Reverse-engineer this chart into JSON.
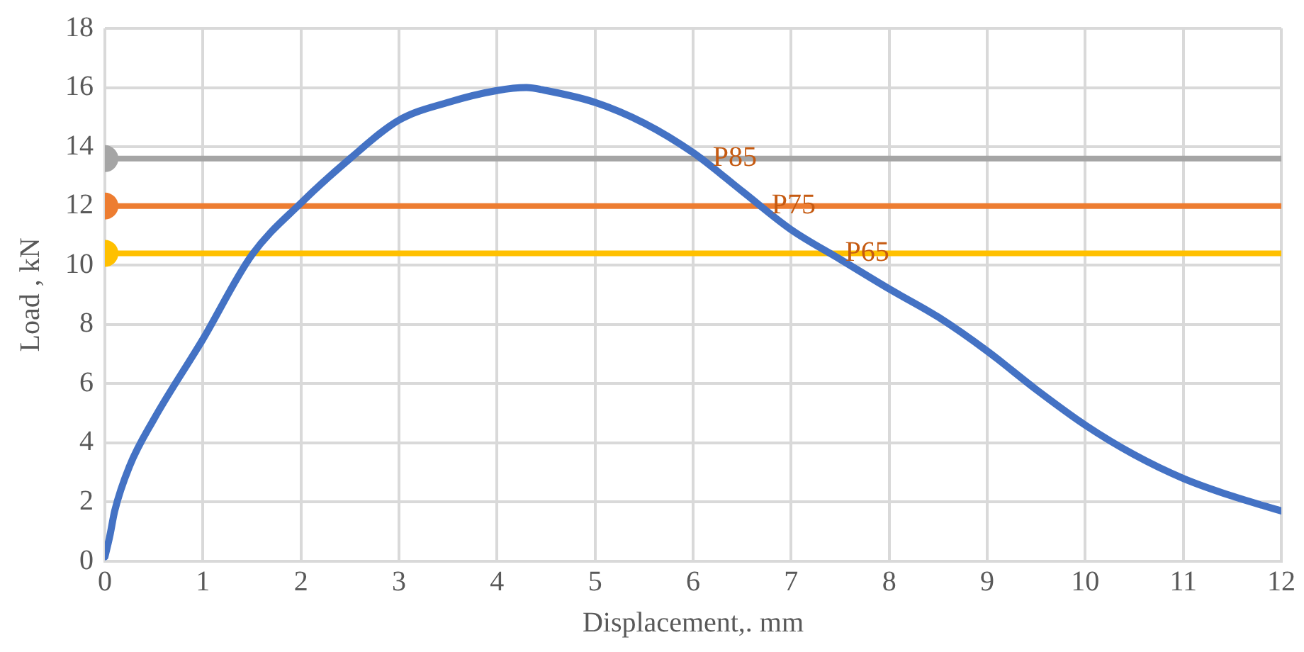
{
  "chart_data": {
    "type": "line",
    "xlabel": "Displacement,. mm",
    "ylabel": "Load , kN",
    "xlim": [
      0,
      12
    ],
    "xticks": [
      0,
      1,
      2,
      3,
      4,
      5,
      6,
      7,
      8,
      9,
      10,
      11,
      12
    ],
    "ylim": [
      0,
      18
    ],
    "yticks": [
      0,
      2,
      4,
      6,
      8,
      10,
      12,
      14,
      16,
      18
    ],
    "grid": true,
    "legend": false,
    "marker": "none",
    "line_style": "solid",
    "series": [
      {
        "color": "#4472c4",
        "x": [
          0,
          0.05,
          0.1,
          0.25,
          0.5,
          1,
          1.5,
          2,
          2.5,
          3,
          3.5,
          4,
          4.3,
          4.5,
          5,
          5.5,
          6,
          6.5,
          7,
          7.5,
          8,
          8.5,
          9,
          9.5,
          10,
          10.5,
          11,
          11.5,
          12
        ],
        "values": [
          0.15,
          0.85,
          1.7,
          3.2,
          4.8,
          7.5,
          10.35,
          12.1,
          13.6,
          14.9,
          15.5,
          15.9,
          16.0,
          15.9,
          15.5,
          14.8,
          13.8,
          12.5,
          11.2,
          10.2,
          9.2,
          8.25,
          7.1,
          5.8,
          4.6,
          3.6,
          2.8,
          2.2,
          1.7
        ]
      },
      {
        "type": "scatter",
        "marker": "circle",
        "color": "#a5a5a5",
        "x": [
          0
        ],
        "values": [
          13.6
        ]
      },
      {
        "type": "scatter",
        "marker": "circle",
        "color": "#ed7d31",
        "x": [
          0
        ],
        "values": [
          12
        ]
      },
      {
        "type": "scatter",
        "marker": "circle",
        "color": "#ffc000",
        "x": [
          0
        ],
        "values": [
          10.4
        ]
      }
    ],
    "ref_lines": [
      {
        "axis": "y",
        "value": 13.6,
        "color": "#a5a5a5"
      },
      {
        "axis": "y",
        "value": 12,
        "color": "#ed7d31"
      },
      {
        "axis": "y",
        "value": 10.4,
        "color": "#ffc000"
      }
    ],
    "annotations": [
      {
        "text": "P85",
        "x": 6.2,
        "y": 13.6
      },
      {
        "text": "P75",
        "x": 6.8,
        "y": 12
      },
      {
        "text": "P65",
        "x": 7.55,
        "y": 10.4
      }
    ]
  }
}
